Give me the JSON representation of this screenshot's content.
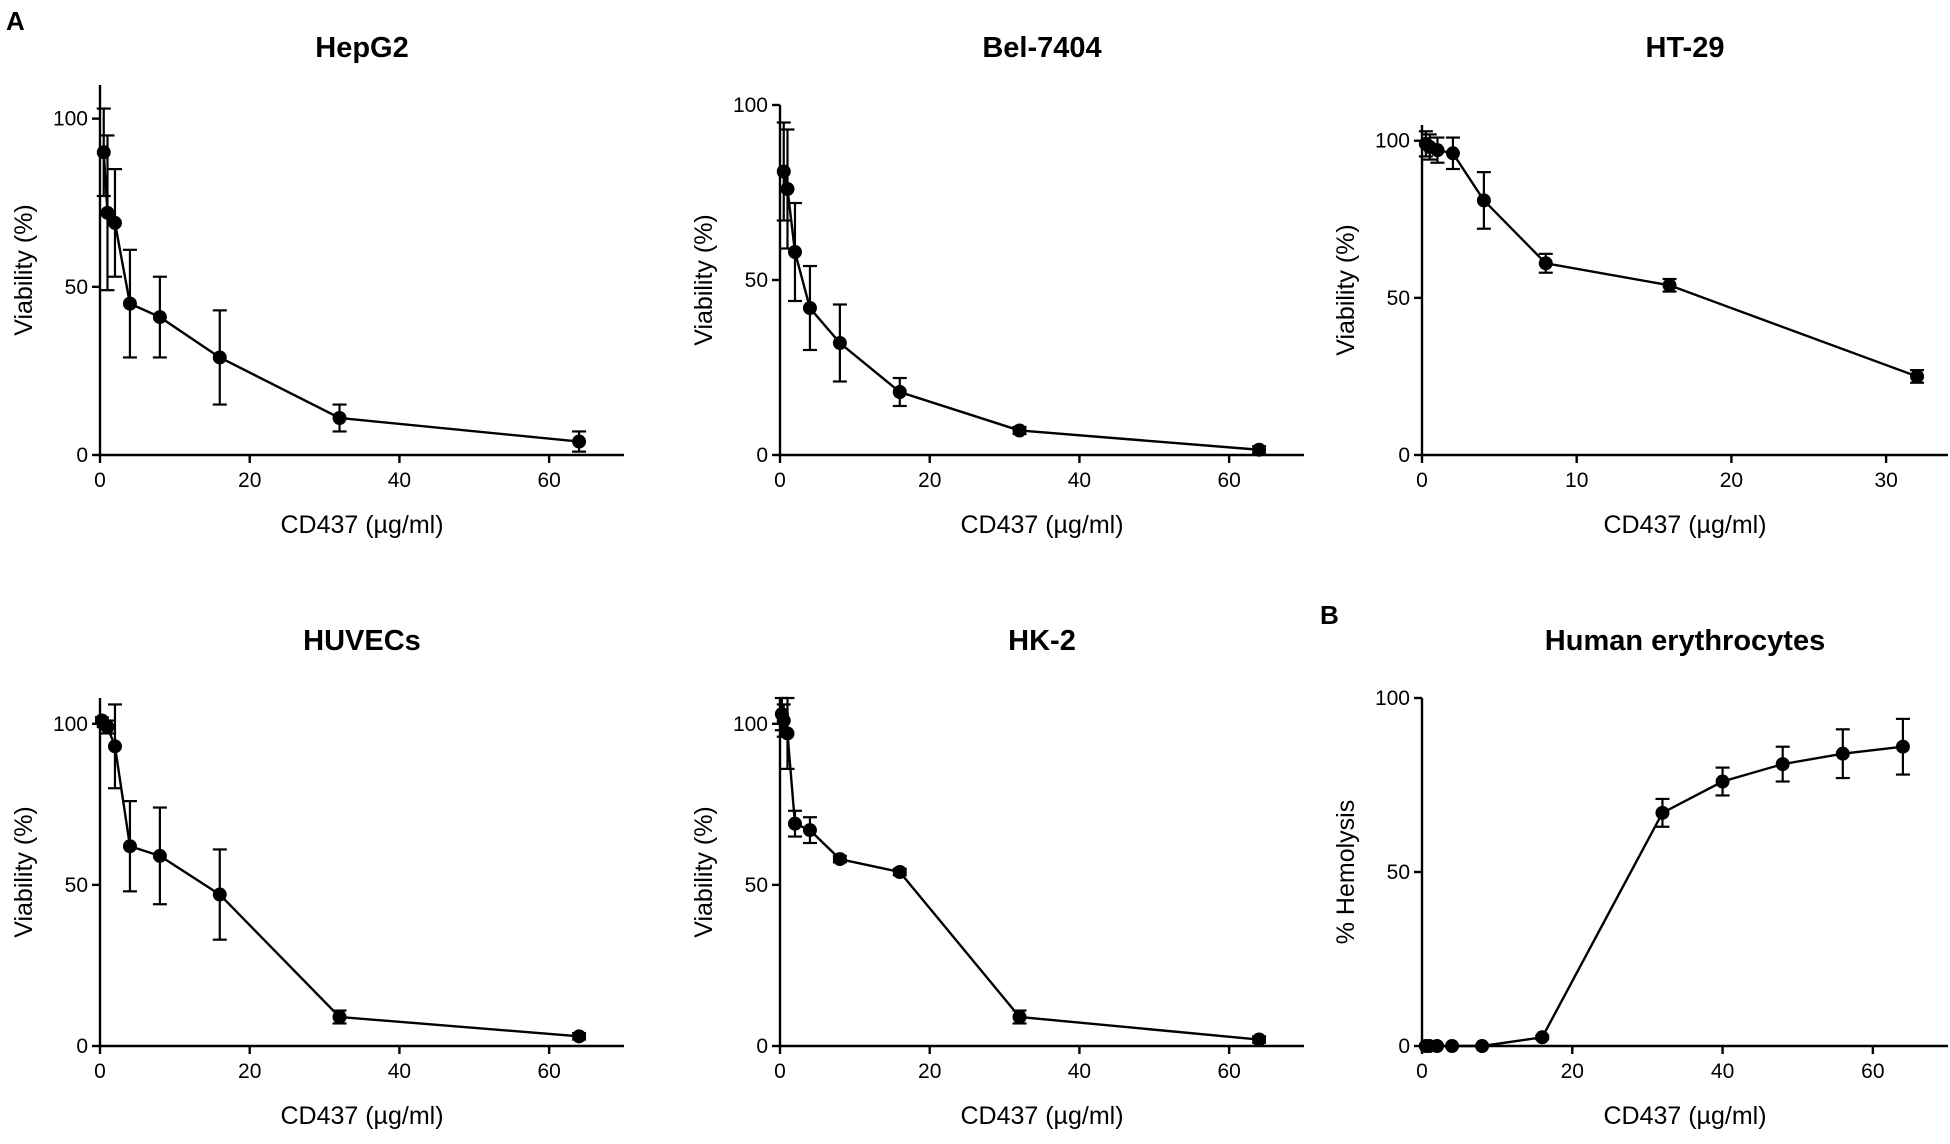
{
  "panels": {
    "a": "A",
    "b": "B"
  },
  "chart_data": [
    {
      "type": "line",
      "title": "HepG2",
      "xlabel": "CD437 (µg/ml)",
      "ylabel": "Viability (%)",
      "xlim": [
        0,
        70
      ],
      "ylim": [
        0,
        110
      ],
      "xticks": [
        0,
        20,
        40,
        60
      ],
      "yticks": [
        0,
        50,
        100
      ],
      "x": [
        0.5,
        1,
        2,
        4,
        8,
        16,
        32,
        64
      ],
      "values": [
        90,
        72,
        69,
        45,
        41,
        29,
        11,
        4
      ],
      "errors": [
        13,
        23,
        16,
        16,
        12,
        14,
        4,
        3
      ]
    },
    {
      "type": "line",
      "title": "Bel-7404",
      "xlabel": "CD437 (µg/ml)",
      "ylabel": "Viability (%)",
      "xlim": [
        0,
        70
      ],
      "ylim": [
        0,
        100
      ],
      "xticks": [
        0,
        20,
        40,
        60
      ],
      "yticks": [
        0,
        50,
        100
      ],
      "x": [
        0.5,
        1,
        2,
        4,
        8,
        16,
        32,
        64
      ],
      "values": [
        81,
        76,
        58,
        42,
        32,
        18,
        7,
        1.5
      ],
      "errors": [
        14,
        17,
        14,
        12,
        11,
        4,
        1,
        1
      ]
    },
    {
      "type": "line",
      "title": "HT-29",
      "xlabel": "CD437 (µg/ml)",
      "ylabel": "Viability (%)",
      "xlim": [
        0,
        34
      ],
      "ylim": [
        0,
        105
      ],
      "xticks": [
        0,
        10,
        20,
        30
      ],
      "yticks": [
        0,
        50,
        100
      ],
      "x": [
        0.25,
        0.5,
        1,
        2,
        4,
        8,
        16,
        32
      ],
      "values": [
        99,
        98,
        97,
        96,
        81,
        61,
        54,
        25
      ],
      "errors": [
        4,
        4,
        4,
        5,
        9,
        3,
        2,
        2
      ]
    },
    {
      "type": "line",
      "title": "HUVECs",
      "xlabel": "CD437 (µg/ml)",
      "ylabel": "Viability (%)",
      "xlim": [
        0,
        70
      ],
      "ylim": [
        0,
        108
      ],
      "xticks": [
        0,
        20,
        40,
        60
      ],
      "yticks": [
        0,
        50,
        100
      ],
      "x": [
        0.25,
        0.5,
        1,
        2,
        4,
        8,
        16,
        32,
        64
      ],
      "values": [
        101,
        100,
        99,
        93,
        62,
        59,
        47,
        9,
        3
      ],
      "errors": [
        1,
        1,
        2,
        13,
        14,
        15,
        14,
        2,
        1
      ]
    },
    {
      "type": "line",
      "title": "HK-2",
      "xlabel": "CD437 (µg/ml)",
      "ylabel": "Viability (%)",
      "xlim": [
        0,
        70
      ],
      "ylim": [
        0,
        108
      ],
      "xticks": [
        0,
        20,
        40,
        60
      ],
      "yticks": [
        0,
        50,
        100
      ],
      "x": [
        0.25,
        0.5,
        1,
        2,
        4,
        8,
        16,
        32,
        64
      ],
      "values": [
        103,
        101,
        97,
        69,
        67,
        58,
        54,
        9,
        2
      ],
      "errors": [
        5,
        5,
        11,
        4,
        4,
        1,
        1,
        2,
        1
      ]
    },
    {
      "type": "line",
      "title": "Human erythrocytes",
      "xlabel": "CD437 (µg/ml)",
      "ylabel": "% Hemolysis",
      "xlim": [
        0,
        70
      ],
      "ylim": [
        0,
        100
      ],
      "xticks": [
        0,
        20,
        40,
        60
      ],
      "yticks": [
        0,
        50,
        100
      ],
      "x": [
        0.5,
        1,
        2,
        4,
        8,
        16,
        32,
        40,
        48,
        56,
        64
      ],
      "values": [
        0,
        0,
        0,
        0,
        0,
        2.5,
        67,
        76,
        81,
        84,
        86
      ],
      "errors": [
        0,
        0,
        0,
        0,
        0,
        0.5,
        4,
        4,
        5,
        7,
        8
      ]
    }
  ]
}
